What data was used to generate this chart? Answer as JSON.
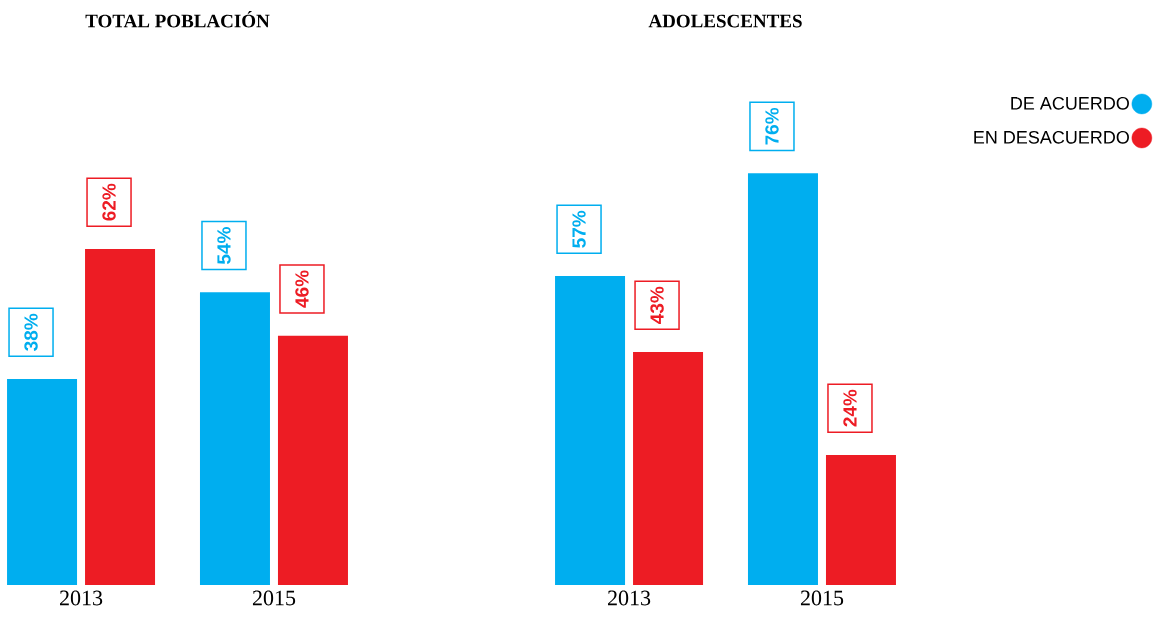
{
  "chart_data": [
    {
      "type": "bar",
      "title": "TOTAL POBLACIÓN",
      "categories": [
        "2013",
        "2015"
      ],
      "legend": false,
      "series": [
        {
          "color": "#00aeef",
          "values": [
            38,
            54
          ],
          "value_labels": [
            "38%",
            "54%"
          ]
        },
        {
          "color": "#ed1c24",
          "values": [
            62,
            46
          ],
          "value_labels": [
            "62%",
            "46%"
          ]
        }
      ]
    },
    {
      "type": "bar",
      "title": "ADOLESCENTES",
      "categories": [
        "2013",
        "2015"
      ],
      "legend": "top right",
      "series": [
        {
          "name": "DE ACUERDO",
          "color": "#00aeef",
          "values": [
            57,
            76
          ],
          "value_labels": [
            "57%",
            "76%"
          ]
        },
        {
          "name": "EN DESACUERDO",
          "color": "#ed1c24",
          "values": [
            43,
            24
          ],
          "value_labels": [
            "43%",
            "24%"
          ]
        }
      ]
    }
  ]
}
